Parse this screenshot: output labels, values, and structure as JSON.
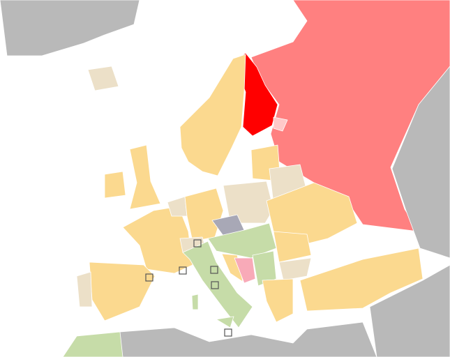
{
  "colors": {
    "sea": "#ffffff",
    "outside": "#b9b9b9",
    "highlight": "#ff0000",
    "neighbor": "#ff8080",
    "orange": "#fbd98f",
    "beige": "#ece0c8",
    "green": "#c6dca8",
    "pink": "#f8aab8",
    "slate": "#a8a8b6",
    "light_pink": "#ffc8c8"
  }
}
